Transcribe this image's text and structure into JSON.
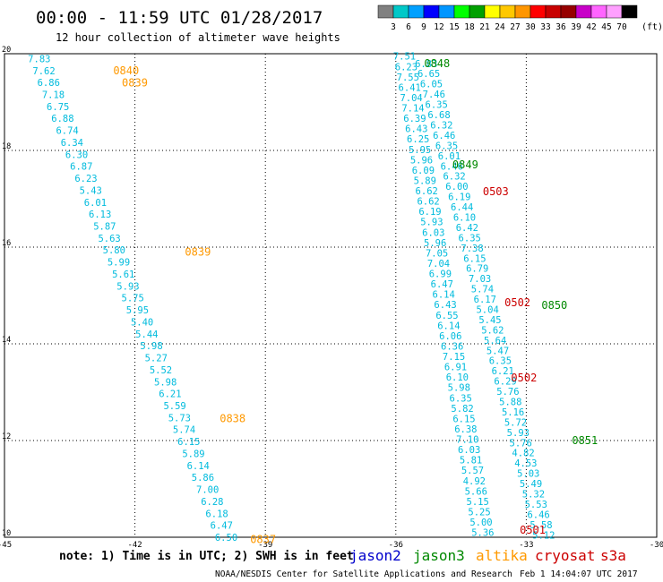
{
  "header": {
    "title": "00:00 - 11:59 UTC 01/28/2017",
    "subtitle": "12 hour collection of altimeter wave heights",
    "unit": "(ft)"
  },
  "legend": {
    "colors": [
      "#808080",
      "#00c8c8",
      "#00a0ff",
      "#0000ff",
      "#0096ff",
      "#00ff00",
      "#00a000",
      "#ffff00",
      "#ffc800",
      "#ff9600",
      "#ff0000",
      "#c80000",
      "#960000",
      "#c800c8",
      "#ff64ff",
      "#ffa0ff",
      "#000000"
    ],
    "labels": [
      "3",
      "6",
      "9",
      "12",
      "15",
      "18",
      "21",
      "24",
      "27",
      "30",
      "33",
      "36",
      "39",
      "42",
      "45",
      "70"
    ]
  },
  "footer": {
    "note": "note: 1) Time is in UTC; 2) SWH is in feet",
    "credit": "NOAA/NESDIS Center for Satellite Applications and Research",
    "timestamp": "Feb  1 14:04:07 UTC 2017",
    "satellites": [
      {
        "name": "jason2",
        "color": "#0000cc"
      },
      {
        "name": "jason3",
        "color": "#008800"
      },
      {
        "name": "altika",
        "color": "#ff9900"
      },
      {
        "name": "cryosat",
        "color": "#cc0000"
      },
      {
        "name": "s3a",
        "color": "#cc0000"
      }
    ]
  },
  "chart_data": {
    "type": "scatter",
    "xlim": [
      -45,
      -30
    ],
    "ylim": [
      10,
      20
    ],
    "xticks": [
      "-45",
      "-42",
      "-39",
      "-36",
      "-33",
      "-30"
    ],
    "yticks": [
      "10",
      "12",
      "14",
      "16",
      "18",
      "20"
    ],
    "grid": true,
    "tracks": [
      {
        "satellite": "altika",
        "color": "#00bbdd",
        "lon_top": -44.2,
        "lat_top": 19.9,
        "lon_bottom": -39.9,
        "lat_bottom": 10.0,
        "values": [
          "7.83",
          "7.62",
          "6.86",
          "7.18",
          "6.75",
          "6.88",
          "6.74",
          "6.34",
          "6.30",
          "6.87",
          "6.23",
          "5.43",
          "6.01",
          "6.13",
          "5.87",
          "5.63",
          "5.80",
          "5.99",
          "5.61",
          "5.93",
          "5.75",
          "5.95",
          "5.40",
          "5.44",
          "5.98",
          "5.27",
          "5.52",
          "5.98",
          "6.21",
          "5.59",
          "5.73",
          "5.74",
          "6.15",
          "5.89",
          "6.14",
          "5.86",
          "7.00",
          "6.28",
          "6.18",
          "6.47",
          "6.50"
        ]
      },
      {
        "satellite": "jason3",
        "color": "#00bbdd",
        "lon_top": -35.8,
        "lat_top": 19.95,
        "lon_bottom": -34.0,
        "lat_bottom": 10.1,
        "values": [
          "7.51",
          "6.23",
          "7.55",
          "6.41",
          "7.04",
          "7.14",
          "6.39",
          "6.43",
          "6.25",
          "5.95",
          "5.96",
          "6.09",
          "5.89",
          "6.62",
          "6.62",
          "6.19",
          "5.93",
          "6.03",
          "5.96",
          "7.05",
          "7.04",
          "6.99",
          "6.47",
          "6.14",
          "6.43",
          "6.55",
          "6.14",
          "6.06",
          "6.36",
          "7.15",
          "6.91",
          "6.10",
          "5.98",
          "6.35",
          "5.82",
          "6.15",
          "6.38",
          "7.10",
          "6.03",
          "5.81",
          "5.57",
          "4.92",
          "5.66",
          "5.15",
          "5.25",
          "5.00",
          "5.36"
        ]
      },
      {
        "satellite": "jason2",
        "color": "#00bbdd",
        "lon_top": -35.3,
        "lat_top": 19.8,
        "lon_bottom": -32.6,
        "lat_bottom": 10.05,
        "values": [
          "6.83",
          "6.65",
          "6.05",
          "7.46",
          "6.35",
          "6.68",
          "6.32",
          "6.46",
          "6.35",
          "6.01",
          "6.46",
          "6.32",
          "6.00",
          "6.19",
          "6.44",
          "6.10",
          "6.42",
          "6.35",
          "7.38",
          "6.15",
          "6.79",
          "7.03",
          "5.74",
          "6.17",
          "5.04",
          "5.45",
          "5.62",
          "5.64",
          "5.47",
          "6.35",
          "6.21",
          "6.29",
          "5.76",
          "5.88",
          "5.16",
          "5.72",
          "5.93",
          "5.76",
          "4.82",
          "4.53",
          "5.03",
          "5.49",
          "5.32",
          "5.53",
          "6.46",
          "5.58",
          "5.12"
        ]
      }
    ],
    "time_labels": [
      {
        "text": "0840",
        "satellite": "altika",
        "color": "#ff9900",
        "lon": -42.5,
        "lat": 19.65
      },
      {
        "text": "0839",
        "satellite": "altika",
        "color": "#ff9900",
        "lon": -42.3,
        "lat": 19.4
      },
      {
        "text": "0839",
        "satellite": "altika",
        "color": "#ff9900",
        "lon": -40.85,
        "lat": 15.9
      },
      {
        "text": "0838",
        "satellite": "altika",
        "color": "#ff9900",
        "lon": -40.05,
        "lat": 12.45
      },
      {
        "text": "0837",
        "satellite": "altika",
        "color": "#ff9900",
        "lon": -39.35,
        "lat": 9.95
      },
      {
        "text": "0848",
        "satellite": "jason3",
        "color": "#008800",
        "lon": -35.35,
        "lat": 19.8
      },
      {
        "text": "0849",
        "satellite": "jason3",
        "color": "#008800",
        "lon": -34.7,
        "lat": 17.7
      },
      {
        "text": "0850",
        "satellite": "jason3",
        "color": "#008800",
        "lon": -32.65,
        "lat": 14.8
      },
      {
        "text": "0851",
        "satellite": "jason3",
        "color": "#008800",
        "lon": -31.95,
        "lat": 12.0
      },
      {
        "text": "0503",
        "satellite": "cryosat",
        "color": "#cc0000",
        "lon": -34.0,
        "lat": 17.15
      },
      {
        "text": "0502",
        "satellite": "cryosat",
        "color": "#cc0000",
        "lon": -33.5,
        "lat": 14.85
      },
      {
        "text": "0502",
        "satellite": "cryosat",
        "color": "#cc0000",
        "lon": -33.35,
        "lat": 13.3
      },
      {
        "text": "0501",
        "satellite": "cryosat",
        "color": "#cc0000",
        "lon": -33.15,
        "lat": 10.15
      }
    ]
  }
}
